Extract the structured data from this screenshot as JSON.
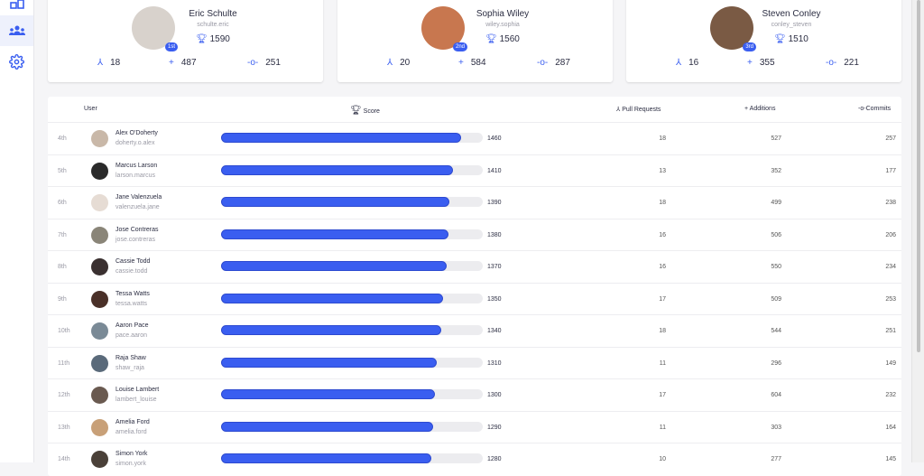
{
  "colors": {
    "accent": "#3a5ef0"
  },
  "sidebar": {
    "items": [
      {
        "icon": "dashboard-icon"
      },
      {
        "icon": "team-icon",
        "active": true
      },
      {
        "icon": "gear-icon"
      }
    ]
  },
  "podium": [
    {
      "name": "Eric Schulte",
      "username": "schulte.eric",
      "place": "1st",
      "score": "1590",
      "pull_requests": "18",
      "additions": "487",
      "commits": "251",
      "avatar_color": "#d8d2cc"
    },
    {
      "name": "Sophia Wiley",
      "username": "wiley.sophia",
      "place": "2nd",
      "score": "1560",
      "pull_requests": "20",
      "additions": "584",
      "commits": "287",
      "avatar_color": "#c8774f"
    },
    {
      "name": "Steven Conley",
      "username": "conley_steven",
      "place": "3rd",
      "score": "1510",
      "pull_requests": "16",
      "additions": "355",
      "commits": "221",
      "avatar_color": "#7a5a44"
    }
  ],
  "table": {
    "headers": {
      "user": "User",
      "score": "Score",
      "pull_requests": "Pull Requests",
      "additions": "Additions",
      "commits": "Commits"
    },
    "max_score": 1590,
    "rows": [
      {
        "rank": "4th",
        "name": "Alex O'Doherty",
        "username": "doherty.o.alex",
        "score": 1460,
        "pr": "18",
        "add": "527",
        "commits": "257",
        "c": "#c9b8a8"
      },
      {
        "rank": "5th",
        "name": "Marcus Larson",
        "username": "larson.marcus",
        "score": 1410,
        "pr": "13",
        "add": "352",
        "commits": "177",
        "c": "#2a2a2a"
      },
      {
        "rank": "6th",
        "name": "Jane Valenzuela",
        "username": "valenzuela.jane",
        "score": 1390,
        "pr": "18",
        "add": "499",
        "commits": "238",
        "c": "#e6dcd4"
      },
      {
        "rank": "7th",
        "name": "Jose Contreras",
        "username": "jose.contreras",
        "score": 1380,
        "pr": "16",
        "add": "506",
        "commits": "206",
        "c": "#8a8578"
      },
      {
        "rank": "8th",
        "name": "Cassie Todd",
        "username": "cassie.todd",
        "score": 1370,
        "pr": "16",
        "add": "550",
        "commits": "234",
        "c": "#3a3030"
      },
      {
        "rank": "9th",
        "name": "Tessa Watts",
        "username": "tessa.watts",
        "score": 1350,
        "pr": "17",
        "add": "509",
        "commits": "253",
        "c": "#4a3028"
      },
      {
        "rank": "10th",
        "name": "Aaron Pace",
        "username": "pace.aaron",
        "score": 1340,
        "pr": "18",
        "add": "544",
        "commits": "251",
        "c": "#7a8a96"
      },
      {
        "rank": "11th",
        "name": "Raja Shaw",
        "username": "shaw_raja",
        "score": 1310,
        "pr": "11",
        "add": "296",
        "commits": "149",
        "c": "#5a6a7a"
      },
      {
        "rank": "12th",
        "name": "Louise Lambert",
        "username": "lambert_louise",
        "score": 1300,
        "pr": "17",
        "add": "604",
        "commits": "232",
        "c": "#6a5a50"
      },
      {
        "rank": "13th",
        "name": "Amelia Ford",
        "username": "amelia.ford",
        "score": 1290,
        "pr": "11",
        "add": "303",
        "commits": "164",
        "c": "#c8a078"
      },
      {
        "rank": "14th",
        "name": "Simon York",
        "username": "simon.york",
        "score": 1280,
        "pr": "10",
        "add": "277",
        "commits": "145",
        "c": "#4a4038"
      }
    ]
  }
}
